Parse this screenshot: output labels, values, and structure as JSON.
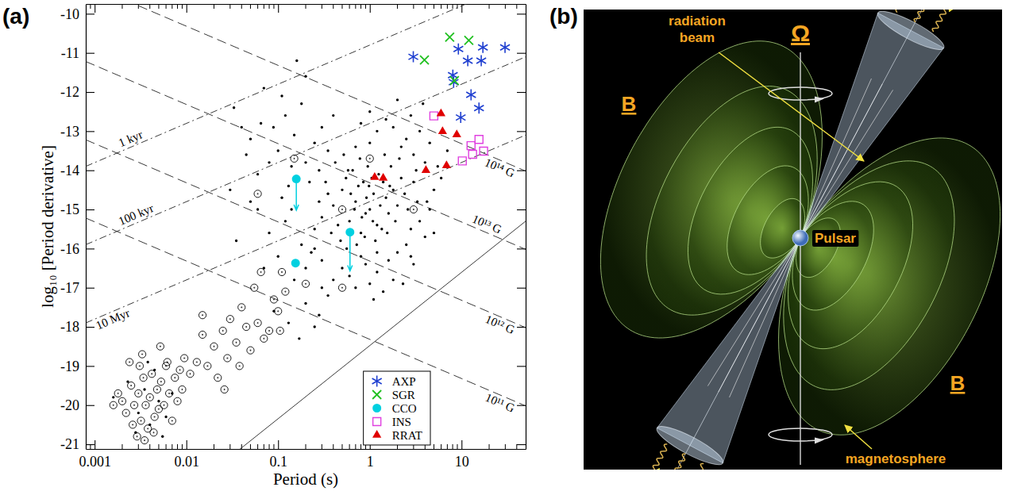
{
  "chart_data": {
    "type": "scatter",
    "panel_label": "(a)",
    "x_label": "Period (s)",
    "y_label": "log₁₀ [Period derivative]",
    "log": "x",
    "xlim": [
      0.0008,
      50
    ],
    "ylim": [
      -21.12,
      -9.75
    ],
    "xticks": [
      0.001,
      0.01,
      0.1,
      1,
      10
    ],
    "xminor_ticks": [
      0.0009,
      0.002,
      0.003,
      0.004,
      0.005,
      0.006,
      0.007,
      0.008,
      0.009,
      0.02,
      0.03,
      0.04,
      0.05,
      0.06,
      0.07,
      0.08,
      0.09,
      0.2,
      0.3,
      0.4,
      0.5,
      0.6,
      0.7,
      0.8,
      0.9,
      2,
      3,
      4,
      5,
      6,
      7,
      8,
      9,
      20,
      30,
      40
    ],
    "yticks": [
      -10,
      -11,
      -12,
      -13,
      -14,
      -15,
      -16,
      -17,
      -18,
      -19,
      -20,
      -21
    ],
    "legend": "lower right",
    "series": [
      {
        "marker": "dot",
        "color": "#000000",
        "x": [
          0.5,
          0.7,
          0.9,
          1.1,
          1.3,
          0.6,
          0.8,
          1.0,
          1.2,
          1.5,
          0.4,
          0.45,
          0.55,
          0.65,
          0.75,
          0.85,
          0.95,
          1.05,
          1.4,
          1.6,
          1.8,
          2.0,
          2.2,
          0.35,
          0.3,
          0.42,
          0.52,
          0.62,
          0.72,
          0.82,
          0.92,
          1.15,
          1.25,
          1.35,
          1.7,
          1.9,
          2.4,
          2.6,
          0.48,
          0.58,
          0.68,
          0.78,
          0.88,
          0.98,
          1.08,
          1.45,
          1.55,
          1.65,
          2.1,
          3.0,
          0.38,
          0.33,
          0.28,
          0.25,
          0.56,
          0.7,
          1.0,
          1.2,
          2.8,
          3.3,
          0.033,
          0.089,
          0.05,
          0.065,
          0.1,
          0.12,
          0.15,
          0.2,
          0.25,
          0.3,
          0.14,
          0.18,
          0.22,
          0.08,
          0.06,
          0.04,
          0.11,
          0.35,
          0.4,
          0.28,
          0.16,
          0.2,
          0.13,
          0.045,
          0.07,
          2.5,
          3.0,
          3.5,
          4.0,
          1.8,
          2.2,
          1.5,
          1.2,
          4.5,
          5.5,
          3.8,
          2.8,
          1.0,
          0.8,
          6.0,
          7.0,
          2.0,
          3.2,
          5.0,
          4.2,
          0.3,
          0.5,
          0.8,
          1.2,
          1.6,
          2.0,
          2.5,
          3.0,
          4.0,
          0.4,
          0.7,
          1.0,
          1.4,
          0.25,
          0.6,
          1.8,
          2.3,
          3.5,
          4.5,
          0.9,
          0.35,
          1.1,
          0.2,
          5.0,
          2.8,
          0.06,
          0.08,
          0.1,
          0.12,
          0.15,
          0.18,
          0.2,
          0.23,
          0.05,
          0.07,
          0.09,
          0.13,
          0.17,
          0.28,
          0.11,
          0.03,
          0.035,
          0.25,
          0.14,
          0.3,
          0.0016,
          0.0023,
          0.003,
          0.0035,
          0.004,
          0.005,
          0.006,
          0.0045,
          0.0028,
          0.007,
          0.0055,
          0.0038
        ],
        "values": [
          -14.5,
          -14.8,
          -15.1,
          -14.6,
          -14.9,
          -15.3,
          -15.6,
          -15.0,
          -15.4,
          -14.7,
          -14.9,
          -15.4,
          -14.2,
          -14.0,
          -14.4,
          -14.3,
          -13.9,
          -14.2,
          -14.3,
          -15.1,
          -14.5,
          -14.9,
          -14.2,
          -14.6,
          -15.2,
          -13.8,
          -13.6,
          -14.6,
          -15.9,
          -15.2,
          -14.7,
          -15.8,
          -14.1,
          -15.5,
          -13.9,
          -15.3,
          -14.6,
          -15.0,
          -15.8,
          -14.0,
          -15.0,
          -13.7,
          -15.7,
          -14.4,
          -15.3,
          -13.6,
          -15.6,
          -14.4,
          -13.7,
          -14.3,
          -15.6,
          -14.3,
          -14.8,
          -15.5,
          -16.0,
          -13.4,
          -13.3,
          -16.1,
          -15.5,
          -14.8,
          -12.4,
          -12.9,
          -13.2,
          -12.8,
          -13.5,
          -12.6,
          -13.1,
          -13.8,
          -13.3,
          -12.9,
          -13.9,
          -12.3,
          -14.3,
          -13.8,
          -14.1,
          -12.9,
          -12.1,
          -13.5,
          -12.6,
          -14.0,
          -11.2,
          -11.6,
          -14.4,
          -13.6,
          -11.9,
          -13.2,
          -13.6,
          -13.0,
          -13.8,
          -12.9,
          -13.4,
          -12.7,
          -13.0,
          -13.3,
          -13.9,
          -12.3,
          -12.6,
          -12.5,
          -12.8,
          -14.2,
          -13.5,
          -12.2,
          -14.0,
          -14.5,
          -14.8,
          -16.3,
          -16.5,
          -16.2,
          -16.6,
          -16.3,
          -16.1,
          -15.9,
          -16.4,
          -15.7,
          -16.8,
          -17.0,
          -16.9,
          -17.1,
          -16.0,
          -16.7,
          -16.8,
          -16.9,
          -15.3,
          -15.0,
          -16.4,
          -17.2,
          -17.3,
          -16.5,
          -15.6,
          -16.2,
          -15.0,
          -15.6,
          -16.2,
          -15.3,
          -16.8,
          -15.9,
          -17.4,
          -16.1,
          -14.8,
          -16.5,
          -17.6,
          -17.9,
          -18.3,
          -17.7,
          -14.7,
          -14.5,
          -15.8,
          -18.0,
          -15.0,
          -17.0,
          -19.8,
          -19.4,
          -20.2,
          -19.6,
          -20.5,
          -19.9,
          -20.3,
          -19.1,
          -20.7,
          -19.7,
          -20.8,
          -18.9
        ]
      },
      {
        "marker": "circled dot",
        "color": "#000000",
        "x": [
          0.0016,
          0.0018,
          0.002,
          0.0022,
          0.0025,
          0.0027,
          0.003,
          0.0032,
          0.0034,
          0.0036,
          0.0038,
          0.004,
          0.0042,
          0.0045,
          0.0048,
          0.005,
          0.0053,
          0.0057,
          0.006,
          0.0065,
          0.007,
          0.0075,
          0.008,
          0.0085,
          0.009,
          0.0095,
          0.0029,
          0.0035,
          0.0044,
          0.0024,
          0.0026,
          0.0033,
          0.0052,
          0.0062,
          0.0031,
          0.011,
          0.013,
          0.015,
          0.017,
          0.02,
          0.022,
          0.025,
          0.028,
          0.03,
          0.035,
          0.04,
          0.045,
          0.05,
          0.06,
          0.07,
          0.08,
          0.09,
          0.1,
          0.105,
          0.12,
          0.015,
          0.038,
          0.055,
          0.065,
          0.026,
          0.11,
          0.2,
          0.06,
          0.15,
          0.5,
          0.5,
          1.0,
          3.0
        ],
        "values": [
          -20.0,
          -19.7,
          -19.9,
          -20.2,
          -19.5,
          -20.0,
          -19.7,
          -20.4,
          -19.3,
          -20.0,
          -20.6,
          -19.8,
          -19.2,
          -20.3,
          -19.6,
          -20.1,
          -19.4,
          -20.0,
          -19.0,
          -19.7,
          -20.4,
          -19.3,
          -19.9,
          -19.1,
          -19.6,
          -18.8,
          -20.8,
          -20.9,
          -20.7,
          -18.9,
          -20.5,
          -18.7,
          -18.5,
          -18.9,
          -19.0,
          -19.2,
          -18.9,
          -18.2,
          -19.0,
          -18.5,
          -19.3,
          -18.1,
          -18.8,
          -17.8,
          -18.4,
          -17.5,
          -18.0,
          -18.6,
          -17.9,
          -18.3,
          -18.1,
          -17.3,
          -17.6,
          -18.1,
          -17.1,
          -17.7,
          -19.0,
          -17.0,
          -16.6,
          -19.6,
          -16.6,
          -16.9,
          -14.6,
          -13.7,
          -17.0,
          -15.0,
          -13.7,
          -15.0
        ]
      },
      {
        "name": "AXP",
        "marker": "asterisk",
        "color": "#1f3fd0",
        "x": [
          2.98,
          9.24,
          17.1,
          29.8,
          11.7,
          16.4,
          8.04,
          8.2,
          12.7,
          9.8,
          15.5
        ],
        "values": [
          -11.1,
          -10.9,
          -10.86,
          -10.86,
          -11.2,
          -11.2,
          -11.57,
          -11.75,
          -12.07,
          -12.65,
          -12.41
        ]
      },
      {
        "name": "SGR",
        "marker": "cross",
        "color": "#20c020",
        "x": [
          3.94,
          7.43,
          12.0,
          8.36
        ],
        "values": [
          -11.18,
          -10.6,
          -10.68,
          -11.71
        ]
      },
      {
        "name": "CCO",
        "marker": "circle",
        "color": "#00d0e0",
        "x": [
          0.158,
          0.608,
          0.155
        ],
        "values": [
          -14.22,
          -15.58,
          -16.37
        ],
        "upper_limit_to": [
          -15.02,
          -16.57,
          null
        ]
      },
      {
        "name": "INS",
        "marker": "open square",
        "color": "#e040e0",
        "x": [
          4.99,
          10.2,
          12.7,
          15.5,
          17.4,
          13.2
        ],
        "values": [
          -12.61,
          -13.76,
          -13.37,
          -13.21,
          -13.51,
          -13.59
        ]
      },
      {
        "name": "RRAT",
        "marker": "triangle",
        "color": "#e00000",
        "x": [
          5.97,
          6.21,
          8.87,
          4.09,
          6.86,
          1.13,
          1.4
        ],
        "values": [
          -12.55,
          -13.01,
          -13.09,
          -14.0,
          -13.88,
          -14.18,
          -14.2
        ]
      }
    ],
    "reference_lines": [
      {
        "label": "10¹⁴ G",
        "line_style": "dashed",
        "x": [
          0.0008,
          50
        ],
        "values": [
          -9.22,
          -14.02
        ]
      },
      {
        "label": "10¹³ G",
        "line_style": "dashed",
        "x": [
          0.0008,
          50
        ],
        "values": [
          -11.22,
          -16.02
        ]
      },
      {
        "label": "10¹² G",
        "line_style": "dashed",
        "x": [
          0.0008,
          50
        ],
        "values": [
          -13.22,
          -18.02
        ]
      },
      {
        "label": "10¹¹ G",
        "line_style": "dashed",
        "x": [
          0.0008,
          50
        ],
        "values": [
          -15.22,
          -20.02
        ]
      },
      {
        "label": "1 kyr",
        "line_style": "dash-dot",
        "x": [
          0.0008,
          50
        ],
        "values": [
          -13.9,
          -9.1
        ]
      },
      {
        "label": "100 kyr",
        "line_style": "dash-dot",
        "x": [
          0.0008,
          50
        ],
        "values": [
          -15.9,
          -11.1
        ]
      },
      {
        "label": "10 Myr",
        "line_style": "dash-dot",
        "x": [
          0.0008,
          50
        ],
        "values": [
          -17.9,
          -13.1
        ]
      },
      {
        "line_style": "solid",
        "x": [
          0.035,
          50
        ],
        "values": [
          -21.2,
          -15.3
        ]
      }
    ]
  },
  "diagram": {
    "panel_label": "(b)",
    "beam_label": "radiation beam",
    "rotation_label": "Ω",
    "field_labels": [
      "B",
      "B"
    ],
    "star_label": "Pulsar",
    "magnetosphere_label": "magnetosphere"
  }
}
